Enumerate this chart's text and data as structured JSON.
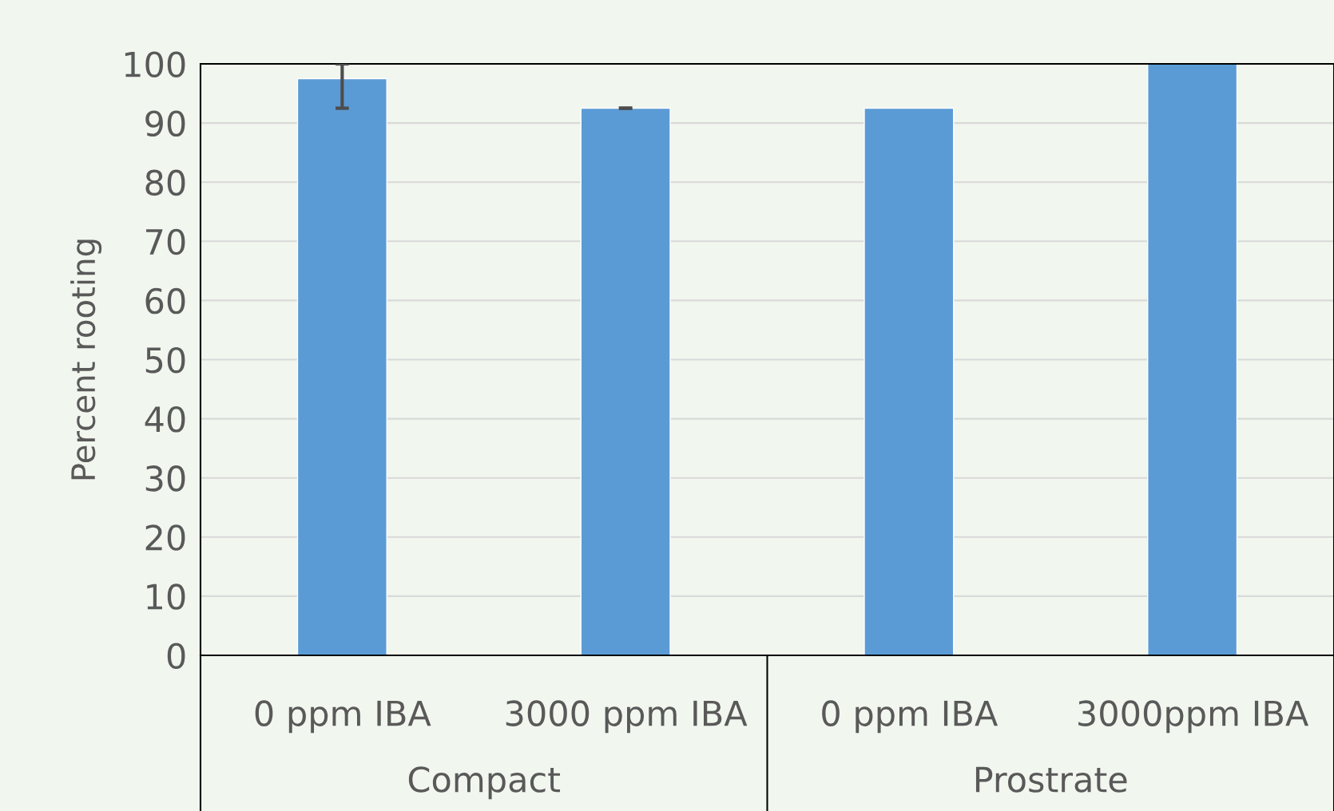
{
  "chart_data": {
    "type": "bar",
    "ylabel": "Percent rooting",
    "categories": [
      "0 ppm IBA",
      "3000 ppm IBA",
      "0 ppm IBA",
      "3000ppm IBA"
    ],
    "values": [
      97.5,
      92.5,
      92.5,
      100
    ],
    "errors": [
      [
        92.5,
        100
      ],
      0,
      null,
      null
    ],
    "color": "#5b9bd5",
    "ylim": [
      0,
      100
    ],
    "yticks": [
      0,
      10,
      20,
      30,
      40,
      50,
      60,
      70,
      80,
      90,
      100
    ],
    "grid": "y",
    "annotations": [
      "Compact",
      "Prostrate"
    ]
  }
}
